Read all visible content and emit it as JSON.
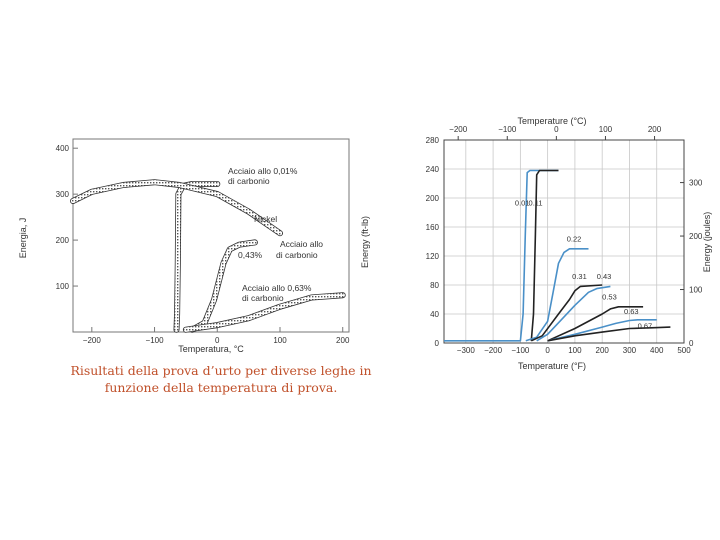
{
  "caption": {
    "line1": "Risultati della prova d’urto per diverse leghe  in",
    "line2": "funzione della temperatura di prova."
  },
  "chart_data": [
    {
      "type": "line",
      "title": "",
      "xlabel": "Temperatura, °C",
      "ylabel": "Energia, J",
      "xlim": [
        -230,
        210
      ],
      "ylim": [
        0,
        420
      ],
      "x_ticks": [
        -200,
        -100,
        0,
        100,
        200
      ],
      "y_ticks": [
        100,
        200,
        300,
        400
      ],
      "grid": false,
      "series": [
        {
          "name": "Acciaio allo 0,01% di carbonio",
          "x": [
            -65,
            -64,
            -63,
            -62,
            -55,
            -40,
            0
          ],
          "y": [
            5,
            40,
            150,
            300,
            318,
            322,
            322
          ]
        },
        {
          "name": "Nickel",
          "x": [
            -230,
            -200,
            -150,
            -100,
            -60,
            0,
            50,
            100
          ],
          "y": [
            285,
            305,
            320,
            326,
            320,
            300,
            262,
            215
          ]
        },
        {
          "name": "Acciaio allo 0,43% di carbonio",
          "x": [
            -40,
            -20,
            -5,
            10,
            20,
            35,
            60
          ],
          "y": [
            5,
            20,
            70,
            150,
            180,
            190,
            195
          ]
        },
        {
          "name": "Acciaio allo 0,63% di carbonio",
          "x": [
            -50,
            0,
            50,
            100,
            150,
            200
          ],
          "y": [
            5,
            15,
            30,
            55,
            75,
            80
          ]
        }
      ],
      "labels": {
        "s001": [
          "Acciaio allo 0,01%",
          "di carbonio"
        ],
        "nickel": [
          "Nickel"
        ],
        "s043": [
          "Acciaio allo",
          "0,43%",
          "di carbonio"
        ],
        "s063": [
          "Acciaio allo 0,63%",
          "di carbonio"
        ]
      },
      "colors": {
        "curve": "#333333",
        "background": "#ffffff"
      }
    },
    {
      "type": "line",
      "title": "",
      "xlabel": "Temperature (°F)",
      "x2label": "Temperature (°C)",
      "ylabel": "Energy (ft-lb)",
      "y2label": "Energy (joules)",
      "xlim": [
        -380,
        500
      ],
      "ylim": [
        0,
        280
      ],
      "x_ticks": [
        -300,
        -200,
        -100,
        0,
        100,
        200,
        300,
        400,
        500
      ],
      "x_tick_labels": [
        "−300",
        "−200",
        "−100",
        "0",
        "100",
        "200",
        "300",
        "400",
        "500"
      ],
      "x2_ticks": [
        -200,
        -100,
        0,
        100,
        200
      ],
      "x2_tick_labels": [
        "−200",
        "−100",
        "0",
        "100",
        "200"
      ],
      "y_ticks": [
        0,
        40,
        80,
        120,
        160,
        200,
        240,
        280
      ],
      "y2_ticks": [
        0,
        100,
        200,
        300
      ],
      "grid": true,
      "series": [
        {
          "name": "0.01",
          "color": "#4a90c8",
          "x": [
            -380,
            -100,
            -90,
            -82,
            -75,
            -65,
            40
          ],
          "y": [
            3,
            3,
            40,
            150,
            235,
            238,
            238
          ]
        },
        {
          "name": "0.11",
          "color": "#222222",
          "x": [
            -60,
            -52,
            -45,
            -40,
            -30,
            40
          ],
          "y": [
            3,
            40,
            150,
            232,
            238,
            238
          ]
        },
        {
          "name": "0.22",
          "color": "#4a90c8",
          "x": [
            -80,
            -40,
            0,
            20,
            40,
            60,
            80,
            150
          ],
          "y": [
            3,
            8,
            30,
            70,
            110,
            125,
            130,
            130
          ]
        },
        {
          "name": "0.31",
          "color": "#222222",
          "x": [
            -60,
            -20,
            40,
            80,
            100,
            120,
            200
          ],
          "y": [
            3,
            10,
            40,
            60,
            72,
            78,
            80
          ]
        },
        {
          "name": "0.43",
          "color": "#4a90c8",
          "x": [
            -40,
            0,
            50,
            100,
            150,
            180,
            230
          ],
          "y": [
            3,
            12,
            32,
            52,
            70,
            75,
            78
          ]
        },
        {
          "name": "0.53",
          "color": "#222222",
          "x": [
            0,
            100,
            200,
            230,
            260,
            350
          ],
          "y": [
            3,
            20,
            40,
            47,
            50,
            50
          ]
        },
        {
          "name": "0.63",
          "color": "#4a90c8",
          "x": [
            0,
            100,
            200,
            250,
            300,
            330,
            400
          ],
          "y": [
            3,
            12,
            22,
            27,
            31,
            32,
            32
          ]
        },
        {
          "name": "0.67",
          "color": "#222222",
          "x": [
            0,
            100,
            200,
            300,
            380,
            450
          ],
          "y": [
            3,
            10,
            15,
            20,
            21,
            22
          ]
        }
      ],
      "colors": {
        "grid": "#c8c8c8",
        "frame": "#444444"
      }
    }
  ]
}
